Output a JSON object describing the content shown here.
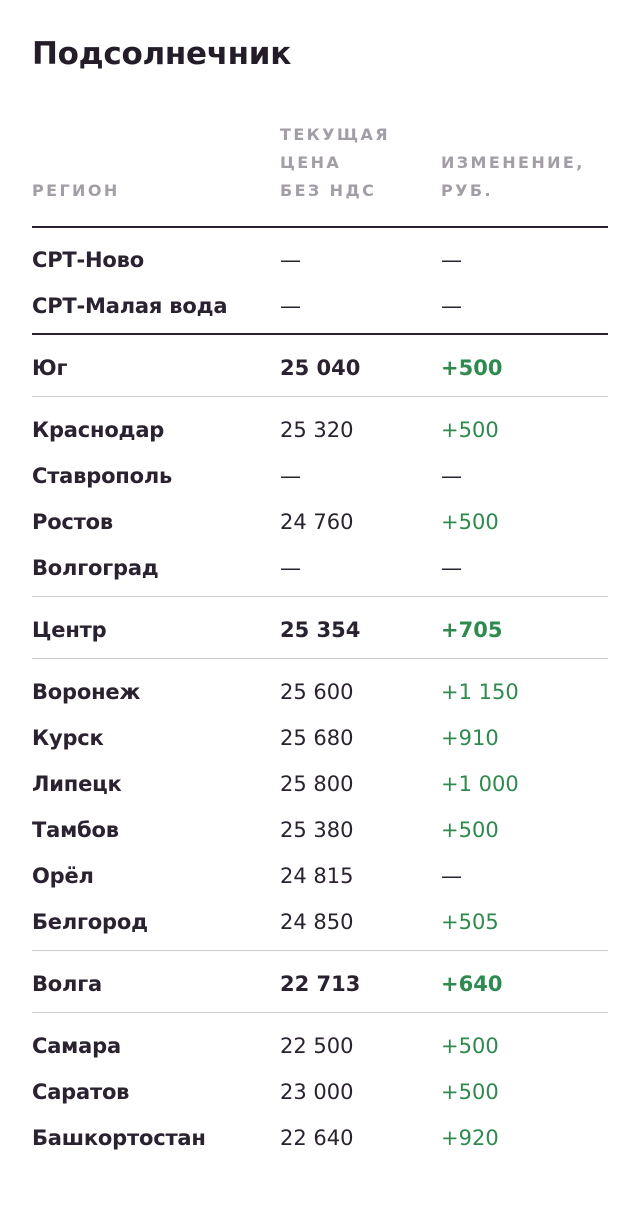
{
  "title": "Подсолнечник",
  "columns": {
    "region": "РЕГИОН",
    "price": [
      "ТЕКУЩАЯ",
      "ЦЕНА",
      "БЕЗ НДС"
    ],
    "change": [
      "ИЗМЕНЕНИЕ,",
      "РУБ."
    ]
  },
  "rows": [
    {
      "region": "СРТ-Ново",
      "price": "—",
      "change": "—"
    },
    {
      "region": "СРТ-Малая вода",
      "price": "—",
      "change": "—"
    },
    {
      "region": "Юг",
      "price": "25 040",
      "change": "+500"
    },
    {
      "region": "Краснодар",
      "price": "25 320",
      "change": "+500"
    },
    {
      "region": "Ставрополь",
      "price": "—",
      "change": "—"
    },
    {
      "region": "Ростов",
      "price": "24 760",
      "change": "+500"
    },
    {
      "region": "Волгоград",
      "price": "—",
      "change": "—"
    },
    {
      "region": "Центр",
      "price": "25 354",
      "change": "+705"
    },
    {
      "region": "Воронеж",
      "price": "25 600",
      "change": "+1 150"
    },
    {
      "region": "Курск",
      "price": "25 680",
      "change": "+910"
    },
    {
      "region": "Липецк",
      "price": "25 800",
      "change": "+1 000"
    },
    {
      "region": "Тамбов",
      "price": "25 380",
      "change": "+500"
    },
    {
      "region": "Орёл",
      "price": "24 815",
      "change": "—"
    },
    {
      "region": "Белгород",
      "price": "24 850",
      "change": "+505"
    },
    {
      "region": "Волга",
      "price": "22 713",
      "change": "+640"
    },
    {
      "region": "Самара",
      "price": "22 500",
      "change": "+500"
    },
    {
      "region": "Саратов",
      "price": "23 000",
      "change": "+500"
    },
    {
      "region": "Башкортостан",
      "price": "22 640",
      "change": "+920"
    }
  ],
  "colors": {
    "text": "#2a2230",
    "positive": "#2e8a4e",
    "header": "#a29da6",
    "rule": "#cfcbd2"
  }
}
